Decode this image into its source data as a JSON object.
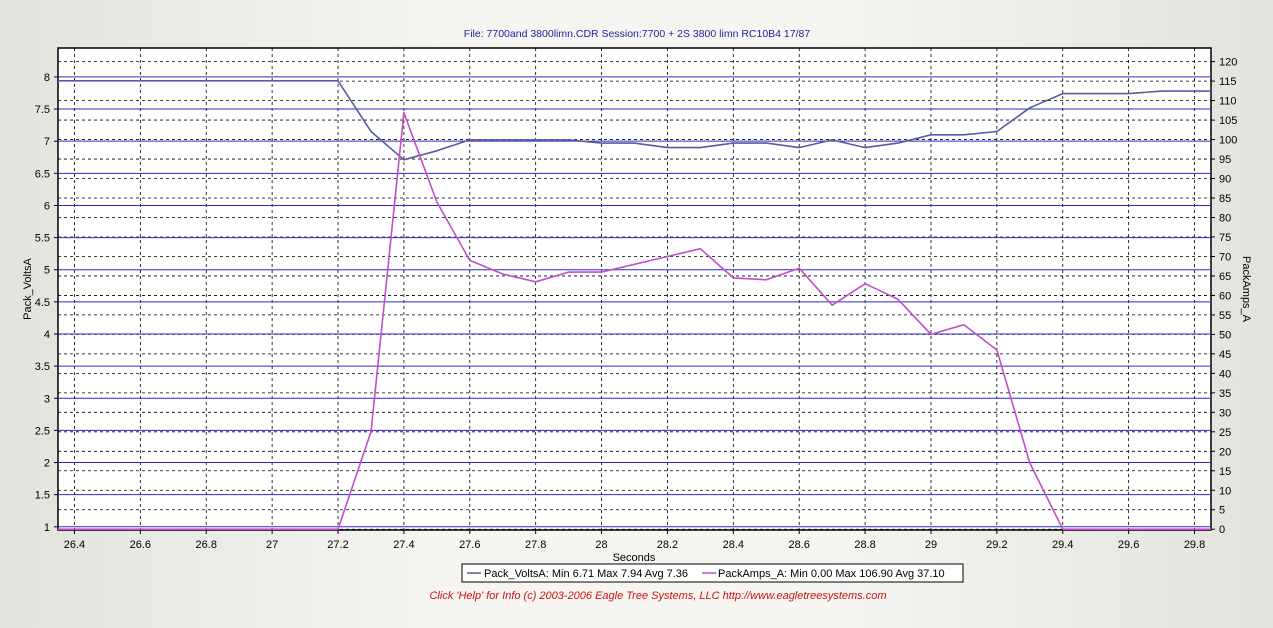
{
  "header": {
    "title": "File: 7700and 3800limn.CDR   Session:7700 + 2S 3800 limn RC10B4 17/87"
  },
  "footer": {
    "text": "Click 'Help' for Info  (c) 2003-2006 Eagle Tree Systems, LLC     http://www.eagletreesystems.com"
  },
  "colors": {
    "volts": "#5a5aa0",
    "amps": "#c050c8",
    "grid_major": "#2a2ad0",
    "grid_minor": "#000000",
    "plot_bg": "#ffffff"
  },
  "chart_data": {
    "type": "line",
    "xlabel": "Seconds",
    "ylabel_left": "Pack_VoltsA",
    "ylabel_right": "PackAmps_A",
    "xlim": [
      26.35,
      29.85
    ],
    "ylim_left": [
      0.95,
      8.45
    ],
    "ylim_right": [
      -0.2,
      123.5
    ],
    "x_ticks": [
      "26.4",
      "26.6",
      "26.8",
      "27",
      "27.2",
      "27.4",
      "27.6",
      "27.8",
      "28",
      "28.2",
      "28.4",
      "28.6",
      "28.8",
      "29",
      "29.2",
      "29.4",
      "29.6",
      "29.8"
    ],
    "y_left_ticks": [
      "1",
      "1.5",
      "2",
      "2.5",
      "3",
      "3.5",
      "4",
      "4.5",
      "5",
      "5.5",
      "6",
      "6.5",
      "7",
      "7.5",
      "8"
    ],
    "y_right_ticks": [
      "0",
      "5",
      "10",
      "15",
      "20",
      "25",
      "30",
      "35",
      "40",
      "45",
      "50",
      "55",
      "60",
      "65",
      "70",
      "75",
      "80",
      "85",
      "90",
      "95",
      "100",
      "105",
      "110",
      "115",
      "120"
    ],
    "grid": true,
    "legend_position": "bottom",
    "series": [
      {
        "name": "Pack_VoltsA",
        "axis": "left",
        "x": [
          26.35,
          27.2,
          27.3,
          27.4,
          27.5,
          27.6,
          27.7,
          27.8,
          27.9,
          28.0,
          28.1,
          28.2,
          28.3,
          28.4,
          28.5,
          28.6,
          28.7,
          28.8,
          28.9,
          29.0,
          29.1,
          29.2,
          29.3,
          29.4,
          29.5,
          29.6,
          29.7,
          29.8,
          29.85
        ],
        "y": [
          7.94,
          7.94,
          7.15,
          6.71,
          6.85,
          7.02,
          7.02,
          7.02,
          7.02,
          6.97,
          6.97,
          6.9,
          6.9,
          6.97,
          6.97,
          6.9,
          7.02,
          6.9,
          6.97,
          7.1,
          7.1,
          7.15,
          7.52,
          7.74,
          7.74,
          7.74,
          7.78,
          7.78,
          7.78
        ]
      },
      {
        "name": "PackAmps_A",
        "axis": "right",
        "x": [
          26.35,
          27.2,
          27.3,
          27.4,
          27.5,
          27.6,
          27.7,
          27.8,
          27.9,
          28.0,
          28.1,
          28.2,
          28.3,
          28.4,
          28.5,
          28.6,
          28.7,
          28.8,
          28.9,
          29.0,
          29.1,
          29.2,
          29.3,
          29.4,
          29.5,
          29.6,
          29.7,
          29.8,
          29.85
        ],
        "y": [
          0,
          0,
          25,
          106.9,
          84,
          69,
          65.5,
          63.5,
          66,
          66,
          68,
          70,
          72,
          64.5,
          64,
          67,
          57.5,
          63,
          59,
          50,
          52.5,
          46,
          17,
          0,
          0,
          0,
          0,
          0,
          0
        ]
      }
    ],
    "legend": [
      {
        "label": "Pack_VoltsA:  Min 6.71 Max 7.94 Avg 7.36"
      },
      {
        "label": "PackAmps_A:  Min 0.00 Max 106.90 Avg 37.10"
      }
    ]
  }
}
